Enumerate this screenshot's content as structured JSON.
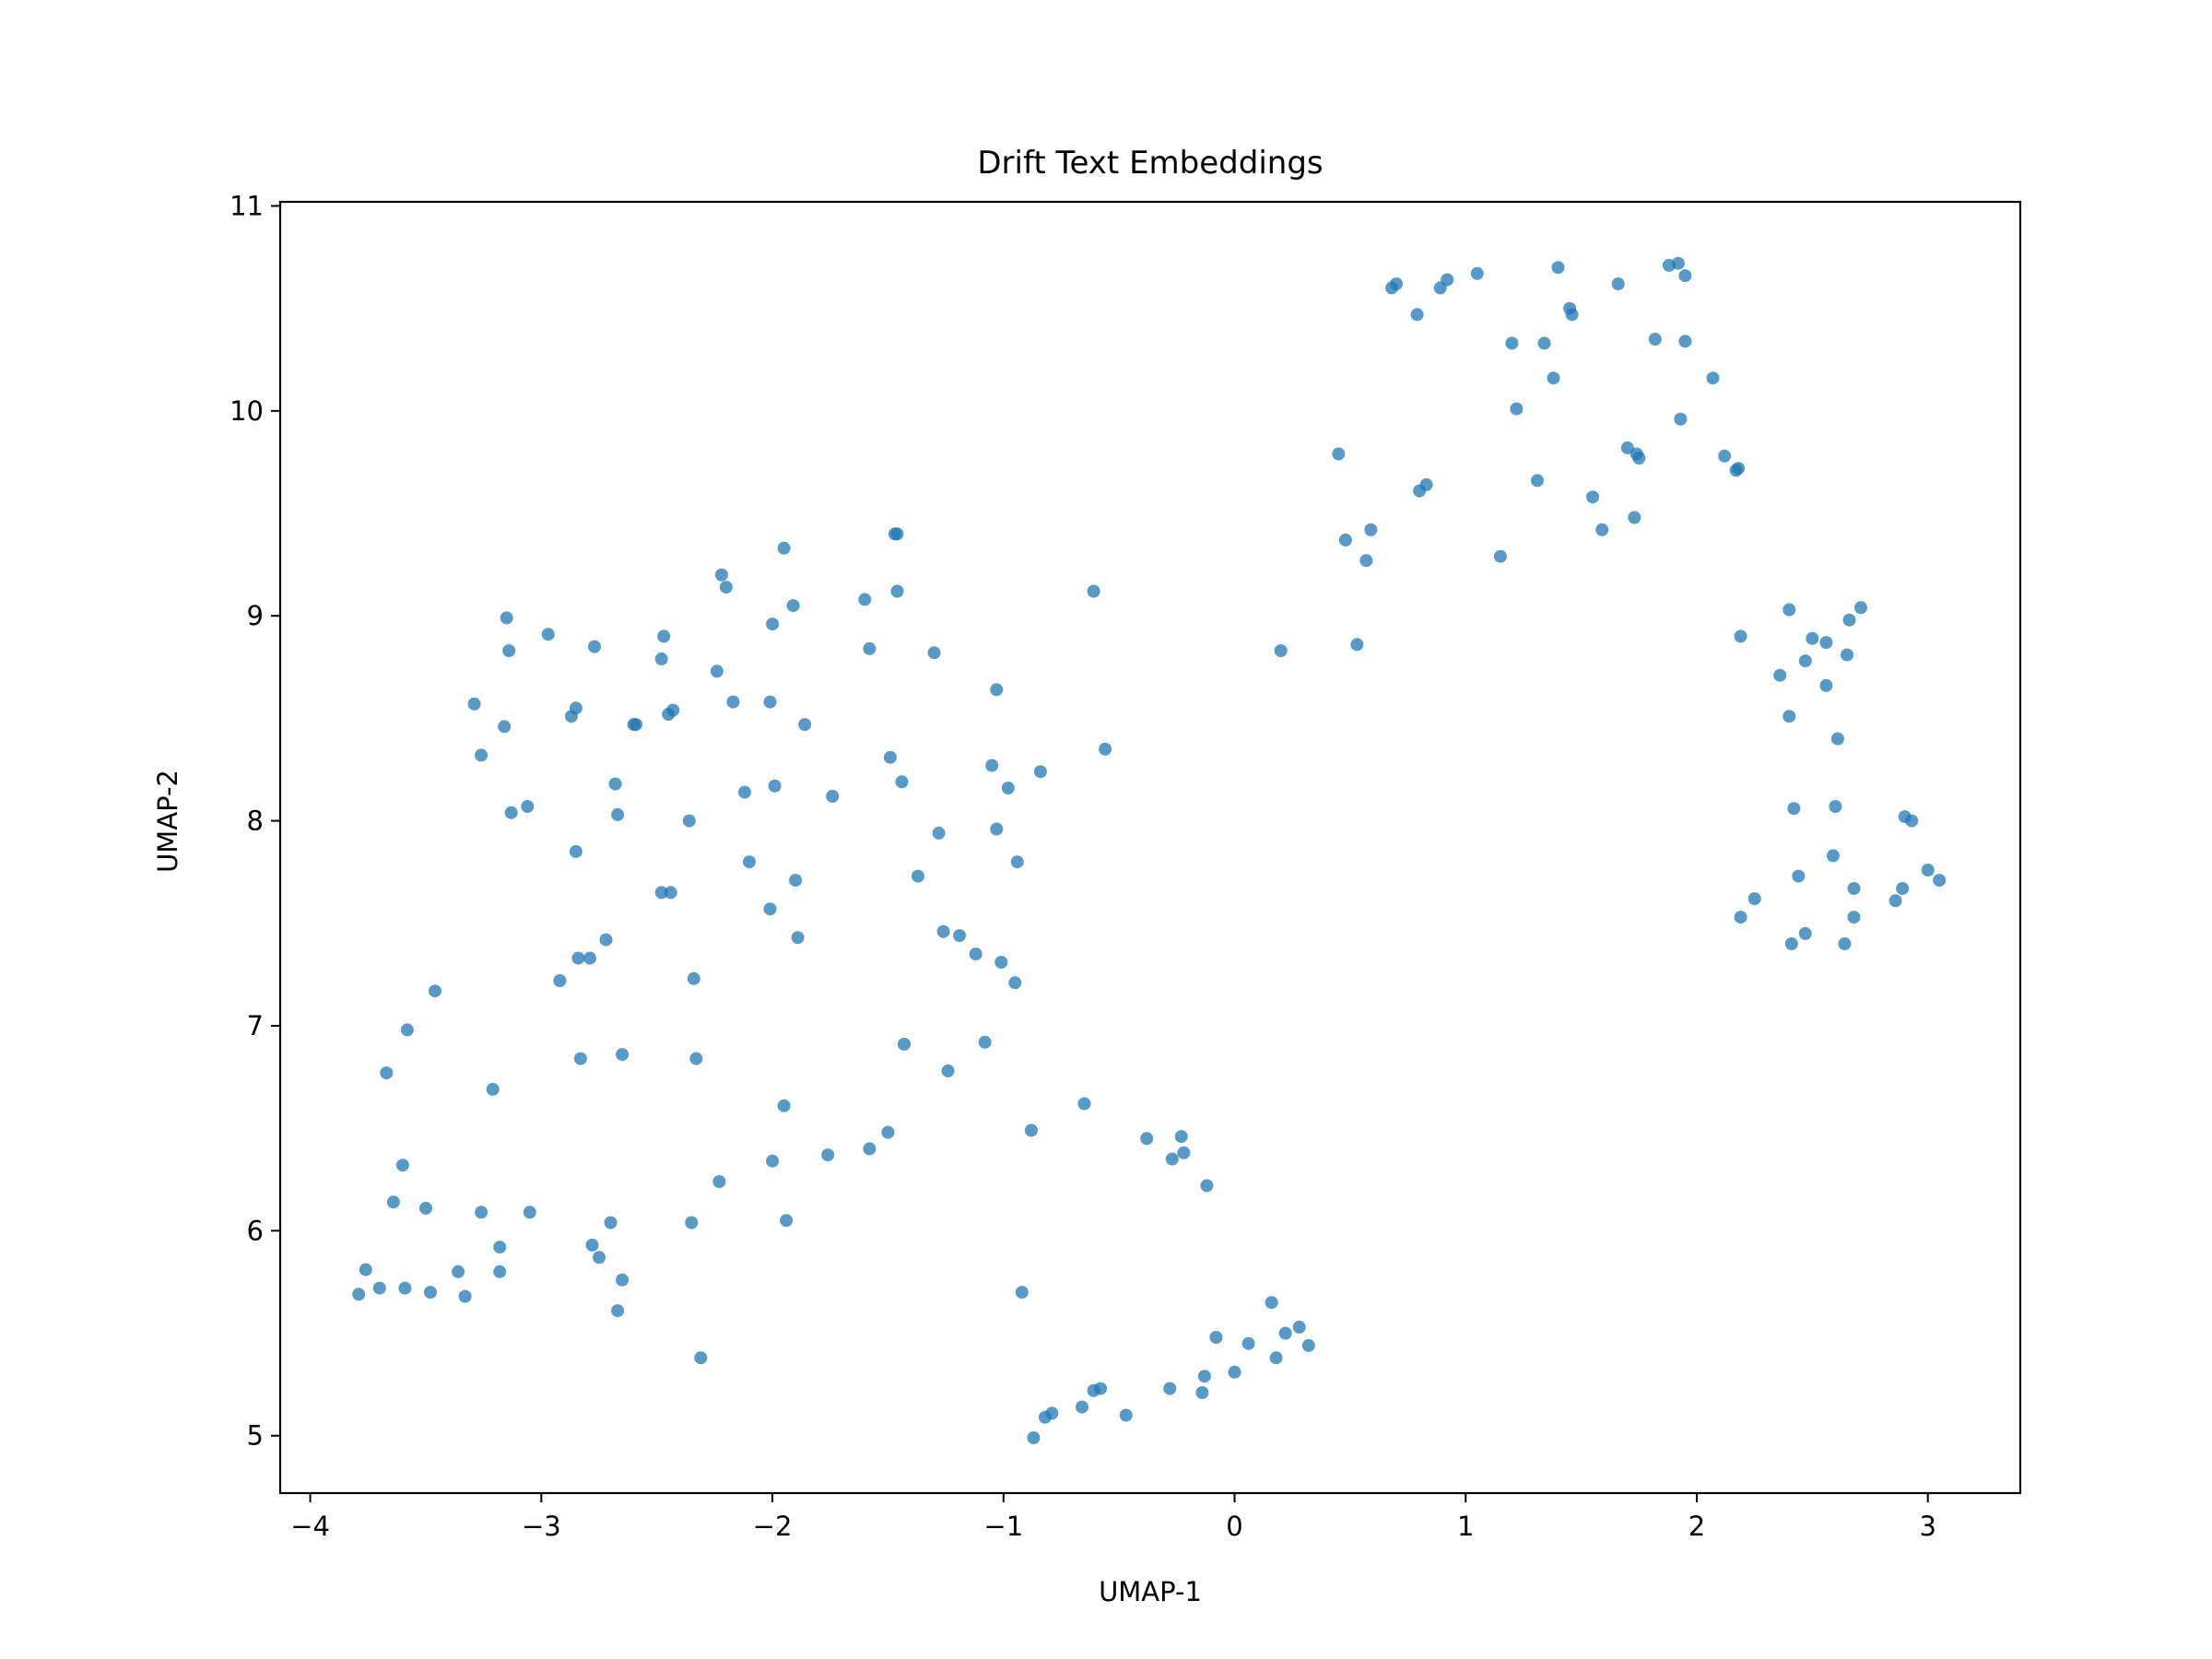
{
  "chart_data": {
    "type": "scatter",
    "title": "Drift Text Embeddings",
    "xlabel": "UMAP-1",
    "ylabel": "UMAP-2",
    "xlim": [
      -4.13,
      3.4
    ],
    "ylim": [
      4.72,
      11.02
    ],
    "xticks": [
      -4,
      -3,
      -2,
      -1,
      0,
      1,
      2,
      3
    ],
    "yticks": [
      5,
      6,
      7,
      8,
      9,
      10,
      11
    ],
    "xtick_labels": [
      "−4",
      "−3",
      "−2",
      "−1",
      "0",
      "1",
      "2",
      "3"
    ],
    "ytick_labels": [
      "5",
      "6",
      "7",
      "8",
      "9",
      "10",
      "11"
    ],
    "grid": false,
    "legend": "none",
    "color": "#1f77b4",
    "alpha": 0.75,
    "series": [
      {
        "points": [
          [
            -3.79,
            5.69
          ],
          [
            -3.76,
            5.81
          ],
          [
            -3.7,
            5.72
          ],
          [
            -3.67,
            6.77
          ],
          [
            -3.64,
            6.14
          ],
          [
            -3.6,
            6.32
          ],
          [
            -3.59,
            5.72
          ],
          [
            -3.58,
            6.98
          ],
          [
            -3.5,
            6.11
          ],
          [
            -3.48,
            5.7
          ],
          [
            -3.46,
            7.17
          ],
          [
            -3.36,
            5.8
          ],
          [
            -3.33,
            5.68
          ],
          [
            -3.29,
            8.57
          ],
          [
            -3.26,
            8.32
          ],
          [
            -3.26,
            6.09
          ],
          [
            -3.21,
            6.69
          ],
          [
            -3.18,
            5.8
          ],
          [
            -3.18,
            5.92
          ],
          [
            -3.16,
            8.46
          ],
          [
            -3.15,
            8.99
          ],
          [
            -3.14,
            8.83
          ],
          [
            -3.13,
            8.04
          ],
          [
            -3.06,
            8.07
          ],
          [
            -3.05,
            6.09
          ],
          [
            -2.97,
            8.91
          ],
          [
            -2.92,
            7.22
          ],
          [
            -2.87,
            8.51
          ],
          [
            -2.85,
            8.55
          ],
          [
            -2.85,
            7.85
          ],
          [
            -2.84,
            7.33
          ],
          [
            -2.83,
            6.84
          ],
          [
            -2.79,
            7.33
          ],
          [
            -2.78,
            5.93
          ],
          [
            -2.77,
            8.85
          ],
          [
            -2.75,
            5.87
          ],
          [
            -2.72,
            7.42
          ],
          [
            -2.7,
            6.04
          ],
          [
            -2.68,
            8.18
          ],
          [
            -2.67,
            8.03
          ],
          [
            -2.67,
            5.61
          ],
          [
            -2.65,
            6.86
          ],
          [
            -2.65,
            5.76
          ],
          [
            -2.6,
            8.47
          ],
          [
            -2.59,
            8.47
          ],
          [
            -2.48,
            8.79
          ],
          [
            -2.48,
            7.65
          ],
          [
            -2.47,
            8.9
          ],
          [
            -2.45,
            8.52
          ],
          [
            -2.44,
            7.65
          ],
          [
            -2.43,
            8.54
          ],
          [
            -2.36,
            8.0
          ],
          [
            -2.35,
            6.04
          ],
          [
            -2.34,
            7.23
          ],
          [
            -2.33,
            6.84
          ],
          [
            -2.31,
            5.38
          ],
          [
            -2.24,
            8.73
          ],
          [
            -2.23,
            6.24
          ],
          [
            -2.22,
            9.2
          ],
          [
            -2.2,
            9.14
          ],
          [
            -2.17,
            8.58
          ],
          [
            -2.12,
            8.14
          ],
          [
            -2.1,
            7.8
          ],
          [
            -2.01,
            8.58
          ],
          [
            -2.01,
            7.57
          ],
          [
            -2.0,
            8.96
          ],
          [
            -2.0,
            6.34
          ],
          [
            -1.99,
            8.17
          ],
          [
            -1.95,
            9.33
          ],
          [
            -1.95,
            6.61
          ],
          [
            -1.94,
            6.05
          ],
          [
            -1.91,
            9.05
          ],
          [
            -1.9,
            7.71
          ],
          [
            -1.89,
            7.43
          ],
          [
            -1.86,
            8.47
          ],
          [
            -1.76,
            6.37
          ],
          [
            -1.74,
            8.12
          ],
          [
            -1.6,
            9.08
          ],
          [
            -1.58,
            8.84
          ],
          [
            -1.58,
            6.4
          ],
          [
            -1.5,
            6.48
          ],
          [
            -1.49,
            8.31
          ],
          [
            -1.47,
            9.4
          ],
          [
            -1.46,
            9.4
          ],
          [
            -1.46,
            9.12
          ],
          [
            -1.44,
            8.19
          ],
          [
            -1.43,
            6.91
          ],
          [
            -1.37,
            7.73
          ],
          [
            -1.3,
            8.82
          ],
          [
            -1.28,
            7.94
          ],
          [
            -1.26,
            7.46
          ],
          [
            -1.24,
            6.78
          ],
          [
            -1.19,
            7.44
          ],
          [
            -1.12,
            7.35
          ],
          [
            -1.08,
            6.92
          ],
          [
            -1.05,
            8.27
          ],
          [
            -1.03,
            8.64
          ],
          [
            -1.03,
            7.96
          ],
          [
            -1.01,
            7.31
          ],
          [
            -0.98,
            8.16
          ],
          [
            -0.95,
            7.21
          ],
          [
            -0.94,
            7.8
          ],
          [
            -0.92,
            5.7
          ],
          [
            -0.88,
            6.49
          ],
          [
            -0.87,
            4.99
          ],
          [
            -0.84,
            8.24
          ],
          [
            -0.82,
            5.09
          ],
          [
            -0.79,
            5.11
          ],
          [
            -0.66,
            5.14
          ],
          [
            -0.65,
            6.62
          ],
          [
            -0.61,
            9.12
          ],
          [
            -0.61,
            5.22
          ],
          [
            -0.58,
            5.23
          ],
          [
            -0.56,
            8.35
          ],
          [
            -0.47,
            5.1
          ],
          [
            -0.38,
            6.45
          ],
          [
            -0.28,
            5.23
          ],
          [
            -0.27,
            6.35
          ],
          [
            -0.23,
            6.46
          ],
          [
            -0.22,
            6.38
          ],
          [
            -0.14,
            5.21
          ],
          [
            -0.13,
            5.29
          ],
          [
            -0.12,
            6.22
          ],
          [
            -0.08,
            5.48
          ],
          [
            0.0,
            5.31
          ],
          [
            0.06,
            5.45
          ],
          [
            0.16,
            5.65
          ],
          [
            0.18,
            5.38
          ],
          [
            0.2,
            8.83
          ],
          [
            0.22,
            5.5
          ],
          [
            0.28,
            5.53
          ],
          [
            0.32,
            5.44
          ],
          [
            0.45,
            9.79
          ],
          [
            0.48,
            9.37
          ],
          [
            0.53,
            8.86
          ],
          [
            0.57,
            9.27
          ],
          [
            0.59,
            9.42
          ],
          [
            0.68,
            10.6
          ],
          [
            0.7,
            10.62
          ],
          [
            0.79,
            10.47
          ],
          [
            0.8,
            9.61
          ],
          [
            0.83,
            9.64
          ],
          [
            0.89,
            10.6
          ],
          [
            0.92,
            10.64
          ],
          [
            1.05,
            10.67
          ],
          [
            1.15,
            9.29
          ],
          [
            1.2,
            10.33
          ],
          [
            1.22,
            10.01
          ],
          [
            1.31,
            9.66
          ],
          [
            1.34,
            10.33
          ],
          [
            1.38,
            10.16
          ],
          [
            1.4,
            10.7
          ],
          [
            1.45,
            10.5
          ],
          [
            1.46,
            10.47
          ],
          [
            1.55,
            9.58
          ],
          [
            1.59,
            9.42
          ],
          [
            1.66,
            10.62
          ],
          [
            1.7,
            9.82
          ],
          [
            1.73,
            9.48
          ],
          [
            1.74,
            9.79
          ],
          [
            1.75,
            9.77
          ],
          [
            1.82,
            10.35
          ],
          [
            1.88,
            10.71
          ],
          [
            1.92,
            10.72
          ],
          [
            1.93,
            9.96
          ],
          [
            1.95,
            10.66
          ],
          [
            1.95,
            10.34
          ],
          [
            2.07,
            10.16
          ],
          [
            2.12,
            9.78
          ],
          [
            2.17,
            9.71
          ],
          [
            2.18,
            9.72
          ],
          [
            2.19,
            8.9
          ],
          [
            2.19,
            7.53
          ],
          [
            2.25,
            7.62
          ],
          [
            2.36,
            8.71
          ],
          [
            2.4,
            9.03
          ],
          [
            2.4,
            8.51
          ],
          [
            2.41,
            7.4
          ],
          [
            2.42,
            8.06
          ],
          [
            2.44,
            7.73
          ],
          [
            2.47,
            8.78
          ],
          [
            2.47,
            7.45
          ],
          [
            2.5,
            8.89
          ],
          [
            2.56,
            8.66
          ],
          [
            2.56,
            8.87
          ],
          [
            2.59,
            7.83
          ],
          [
            2.6,
            8.07
          ],
          [
            2.61,
            8.4
          ],
          [
            2.64,
            7.4
          ],
          [
            2.65,
            8.81
          ],
          [
            2.66,
            8.98
          ],
          [
            2.68,
            7.67
          ],
          [
            2.68,
            7.53
          ],
          [
            2.71,
            9.04
          ],
          [
            2.86,
            7.61
          ],
          [
            2.89,
            7.67
          ],
          [
            2.9,
            8.02
          ],
          [
            2.93,
            8.0
          ],
          [
            3.0,
            7.76
          ],
          [
            3.05,
            7.71
          ]
        ]
      }
    ]
  }
}
